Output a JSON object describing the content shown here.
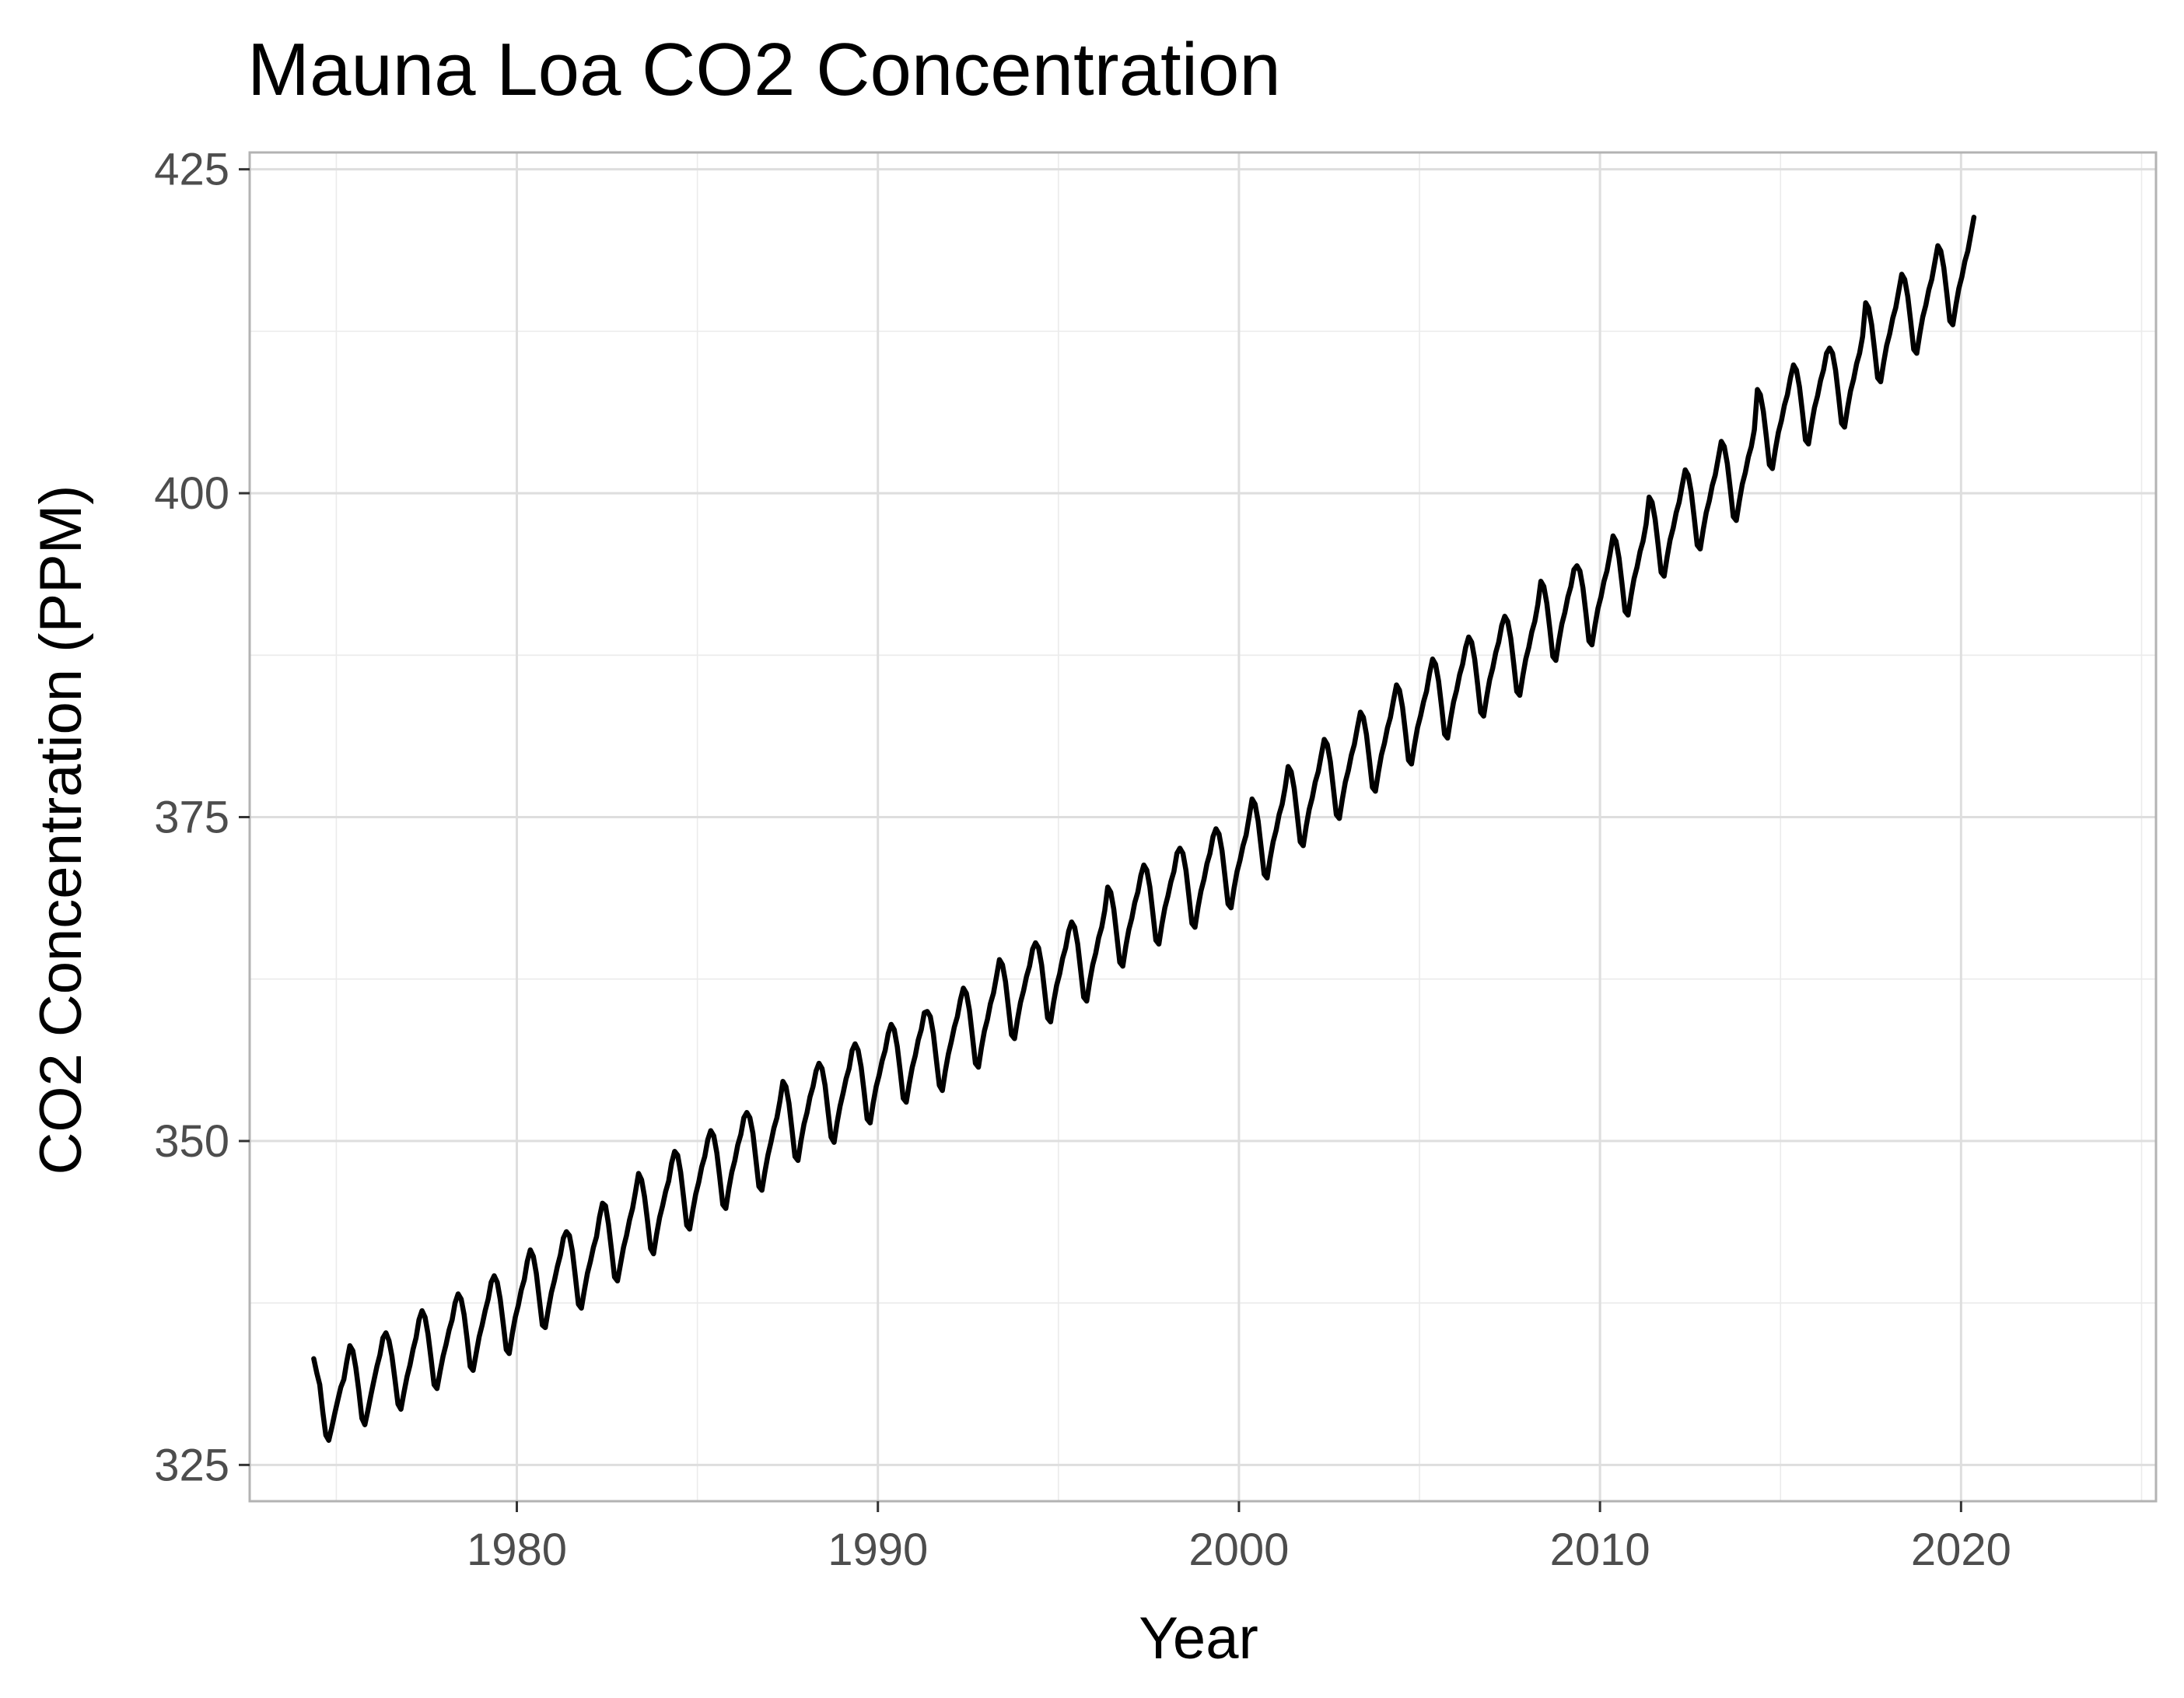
{
  "chart_data": {
    "type": "line",
    "title": "Mauna Loa CO2 Concentration",
    "xlabel": "Year",
    "ylabel": "CO2 Concentration (PPM)",
    "xlim": [
      1972.6,
      2025.4
    ],
    "ylim": [
      322.2,
      426.3
    ],
    "x_ticks": [
      1980,
      1990,
      2000,
      2010,
      2020
    ],
    "x_tick_labels": [
      "1980",
      "1990",
      "2000",
      "2010",
      "2020"
    ],
    "x_minor_ticks": [
      1975,
      1985,
      1995,
      2005,
      2015,
      2025
    ],
    "y_ticks": [
      325,
      350,
      375,
      400,
      425
    ],
    "y_tick_labels": [
      "325",
      "350",
      "375",
      "400",
      "425"
    ],
    "y_minor_ticks": [
      337.5,
      362.5,
      387.5,
      412.5
    ],
    "grid": true,
    "legend": "none",
    "series": [
      {
        "name": "CO2",
        "x_start": 1974.375,
        "x_step": 0.0833,
        "values": [
          333.2,
          332.1,
          331.2,
          329.1,
          327.3,
          326.9,
          327.9,
          329.0,
          330.0,
          331.0,
          331.6,
          333.0,
          334.2,
          333.8,
          332.5,
          330.7,
          328.6,
          328.1,
          329.2,
          330.4,
          331.5,
          332.6,
          333.5,
          334.8,
          335.2,
          334.6,
          333.4,
          331.6,
          329.7,
          329.3,
          330.6,
          331.8,
          332.7,
          333.9,
          334.8,
          336.2,
          336.9,
          336.4,
          335.1,
          333.2,
          331.2,
          330.9,
          332.2,
          333.4,
          334.3,
          335.4,
          336.2,
          337.5,
          338.2,
          337.8,
          336.6,
          334.7,
          332.6,
          332.3,
          333.6,
          334.9,
          335.8,
          336.9,
          337.8,
          339.1,
          339.6,
          339.1,
          337.8,
          335.9,
          333.9,
          333.6,
          335.1,
          336.4,
          337.3,
          338.5,
          339.3,
          340.7,
          341.6,
          341.1,
          339.8,
          337.8,
          335.8,
          335.6,
          337.0,
          338.3,
          339.2,
          340.3,
          341.2,
          342.5,
          343.0,
          342.7,
          341.5,
          339.5,
          337.4,
          337.1,
          338.5,
          339.8,
          340.7,
          341.8,
          342.6,
          344.1,
          345.2,
          345.0,
          343.6,
          341.6,
          339.5,
          339.2,
          340.5,
          341.8,
          342.7,
          343.9,
          344.8,
          346.1,
          347.5,
          347.0,
          345.7,
          343.8,
          341.7,
          341.3,
          342.8,
          344.1,
          345.0,
          346.1,
          346.9,
          348.3,
          349.2,
          348.9,
          347.6,
          345.6,
          343.5,
          343.2,
          344.6,
          345.9,
          346.8,
          348.0,
          348.8,
          350.1,
          350.8,
          350.4,
          349.1,
          347.2,
          345.1,
          344.8,
          346.3,
          347.6,
          348.5,
          349.7,
          350.5,
          351.8,
          352.2,
          351.8,
          350.6,
          348.6,
          346.5,
          346.2,
          347.6,
          348.9,
          349.9,
          351.0,
          351.8,
          353.1,
          354.6,
          354.2,
          352.9,
          350.9,
          348.8,
          348.5,
          350.0,
          351.3,
          352.2,
          353.4,
          354.2,
          355.4,
          356.0,
          355.6,
          354.3,
          352.3,
          350.3,
          349.9,
          351.4,
          352.7,
          353.7,
          354.8,
          355.6,
          357.0,
          357.5,
          357.0,
          355.7,
          353.8,
          351.7,
          351.4,
          352.9,
          354.2,
          355.1,
          356.2,
          357.0,
          358.3,
          359.0,
          358.6,
          357.3,
          355.4,
          353.3,
          353.0,
          354.4,
          355.7,
          356.6,
          357.8,
          358.6,
          359.9,
          360.0,
          359.6,
          358.3,
          356.3,
          354.3,
          353.9,
          355.4,
          356.7,
          357.7,
          358.8,
          359.6,
          360.9,
          361.8,
          361.4,
          360.1,
          358.1,
          356.0,
          355.7,
          357.2,
          358.5,
          359.4,
          360.6,
          361.4,
          362.7,
          364.0,
          363.6,
          362.3,
          360.3,
          358.2,
          357.9,
          359.4,
          360.7,
          361.6,
          362.7,
          363.5,
          364.8,
          365.3,
          364.9,
          363.6,
          361.6,
          359.5,
          359.2,
          360.7,
          362.0,
          362.9,
          364.1,
          364.9,
          366.2,
          366.9,
          366.5,
          365.2,
          363.2,
          361.1,
          360.8,
          362.3,
          363.6,
          364.5,
          365.7,
          366.5,
          367.8,
          369.6,
          369.2,
          367.9,
          365.9,
          363.8,
          363.5,
          365.0,
          366.3,
          367.2,
          368.4,
          369.2,
          370.5,
          371.3,
          370.9,
          369.6,
          367.6,
          365.5,
          365.2,
          366.7,
          368.0,
          368.9,
          370.0,
          370.8,
          372.2,
          372.6,
          372.2,
          370.9,
          368.9,
          366.8,
          366.5,
          368.0,
          369.3,
          370.2,
          371.4,
          372.2,
          373.5,
          374.1,
          373.7,
          372.4,
          370.4,
          368.3,
          368.0,
          369.5,
          370.8,
          371.7,
          372.8,
          373.6,
          375.0,
          376.4,
          376.0,
          374.7,
          372.7,
          370.6,
          370.3,
          371.8,
          373.1,
          374.0,
          375.2,
          376.0,
          377.3,
          378.9,
          378.5,
          377.2,
          375.2,
          373.1,
          372.8,
          374.3,
          375.6,
          376.5,
          377.7,
          378.5,
          379.8,
          381.0,
          380.6,
          379.3,
          377.3,
          375.2,
          374.9,
          376.4,
          377.7,
          378.6,
          379.8,
          380.6,
          381.9,
          383.1,
          382.7,
          381.4,
          379.4,
          377.3,
          377.0,
          378.5,
          379.8,
          380.7,
          381.9,
          382.7,
          384.0,
          385.2,
          384.8,
          383.5,
          381.5,
          379.4,
          379.1,
          380.6,
          381.9,
          382.8,
          383.9,
          384.7,
          386.1,
          387.2,
          386.8,
          385.5,
          383.5,
          381.4,
          381.1,
          382.6,
          383.9,
          384.8,
          386.0,
          386.8,
          388.1,
          388.9,
          388.5,
          387.2,
          385.2,
          383.1,
          382.8,
          384.3,
          385.6,
          386.5,
          387.7,
          388.5,
          389.8,
          390.5,
          390.1,
          388.8,
          386.8,
          384.7,
          384.4,
          385.9,
          387.2,
          388.1,
          389.3,
          390.1,
          391.4,
          393.2,
          392.8,
          391.5,
          389.5,
          387.4,
          387.1,
          388.6,
          389.9,
          390.8,
          392.0,
          392.8,
          394.1,
          394.4,
          394.0,
          392.7,
          390.7,
          388.6,
          388.3,
          389.8,
          391.1,
          392.0,
          393.2,
          394.0,
          395.3,
          396.7,
          396.3,
          395.0,
          393.0,
          390.9,
          390.6,
          392.1,
          393.4,
          394.3,
          395.5,
          396.3,
          397.6,
          399.7,
          399.3,
          398.0,
          396.0,
          393.9,
          393.6,
          395.1,
          396.4,
          397.3,
          398.5,
          399.3,
          400.6,
          401.8,
          401.4,
          400.1,
          398.1,
          396.0,
          395.7,
          397.2,
          398.5,
          399.4,
          400.6,
          401.4,
          402.7,
          404.0,
          403.6,
          402.3,
          400.3,
          398.2,
          397.9,
          399.4,
          400.7,
          401.6,
          402.8,
          403.6,
          404.9,
          408.0,
          407.6,
          406.3,
          404.3,
          402.2,
          401.9,
          403.4,
          404.7,
          405.6,
          406.8,
          407.6,
          408.9,
          409.9,
          409.5,
          408.2,
          406.2,
          404.1,
          403.8,
          405.3,
          406.6,
          407.5,
          408.7,
          409.5,
          410.8,
          411.2,
          410.8,
          409.5,
          407.5,
          405.4,
          405.1,
          406.6,
          407.9,
          408.8,
          410.0,
          410.8,
          412.1,
          414.7,
          414.3,
          413.0,
          411.0,
          408.9,
          408.6,
          410.1,
          411.4,
          412.3,
          413.5,
          414.3,
          415.6,
          416.9,
          416.5,
          415.2,
          413.2,
          411.1,
          410.8,
          412.3,
          413.6,
          414.5,
          415.7,
          416.5,
          417.8,
          419.1,
          418.7,
          417.4,
          415.4,
          413.3,
          413.0,
          414.5,
          415.8,
          416.7,
          417.9,
          418.7,
          420.0,
          421.3
        ]
      }
    ]
  }
}
